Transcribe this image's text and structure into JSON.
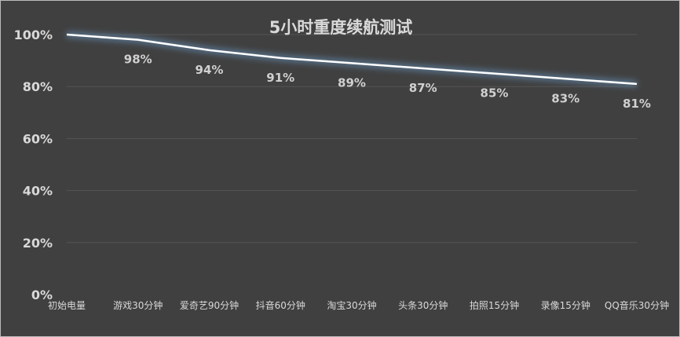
{
  "chart_data": {
    "type": "line",
    "title": "5小时重度续航测试",
    "categories": [
      "初始电量",
      "游戏30分钟",
      "爱奇艺90分钟",
      "抖音60分钟",
      "淘宝30分钟",
      "头条30分钟",
      "拍照15分钟",
      "录像15分钟",
      "QQ音乐30分钟"
    ],
    "values": [
      100,
      98,
      94,
      91,
      89,
      87,
      85,
      83,
      81
    ],
    "data_labels": [
      "",
      "98%",
      "94%",
      "91%",
      "89%",
      "87%",
      "85%",
      "83%",
      "81%"
    ],
    "ylim": [
      0,
      100
    ],
    "yticks": [
      0,
      20,
      40,
      60,
      80,
      100
    ],
    "ytick_labels": [
      "0%",
      "20%",
      "40%",
      "60%",
      "80%",
      "100%"
    ],
    "grid": true,
    "legend": "none",
    "colors": {
      "background": "#404040",
      "line": "#ffffff",
      "glow": "#5b7a99",
      "grid": "#555555",
      "text": "#d9d9d9"
    }
  }
}
